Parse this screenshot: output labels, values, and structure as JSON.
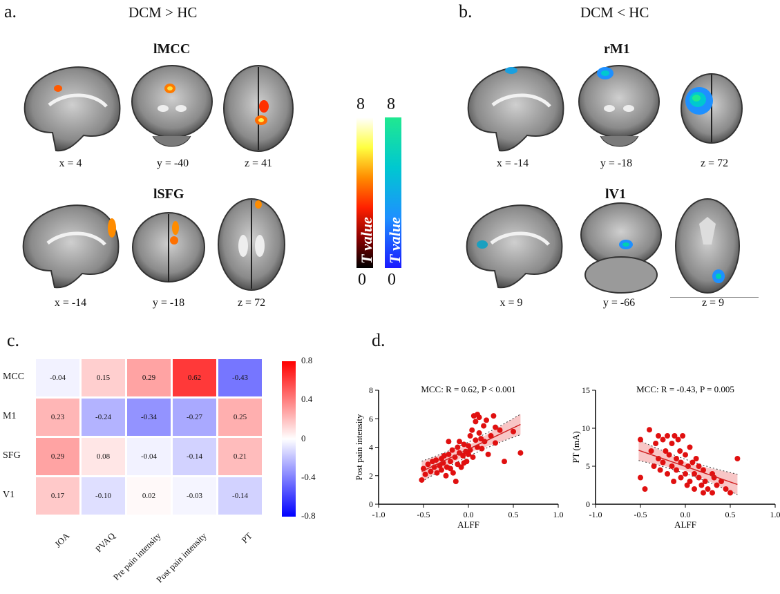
{
  "panel_a": {
    "letter": "a.",
    "contrast": "DCM > HC",
    "regions": [
      {
        "name": "lMCC",
        "coords": [
          "x = 4",
          "y = -40",
          "z = 41"
        ]
      },
      {
        "name": "lSFG",
        "coords": [
          "x = -14",
          "y = -18",
          "z = 72"
        ]
      }
    ]
  },
  "panel_b": {
    "letter": "b.",
    "contrast": "DCM < HC",
    "regions": [
      {
        "name": "rM1",
        "coords": [
          "x = -14",
          "y = -18",
          "z = 72"
        ]
      },
      {
        "name": "lV1",
        "coords": [
          "x = 9",
          "y = -66",
          "z = 9"
        ]
      }
    ]
  },
  "colorbars": {
    "max": "8",
    "min": "0",
    "label": "T value",
    "hot_colors": [
      "#000000",
      "#8b0000",
      "#ff2000",
      "#ff8c00",
      "#ffff40",
      "#ffffff"
    ],
    "cool_colors": [
      "#1a1aff",
      "#1e90ff",
      "#00c8d0",
      "#20e890"
    ]
  },
  "panel_c": {
    "letter": "c."
  },
  "panel_d": {
    "letter": "d."
  },
  "chart_data": [
    {
      "type": "heatmap",
      "rows": [
        "MCC",
        "M1",
        "SFG",
        "V1"
      ],
      "columns": [
        "JOA",
        "PVAQ",
        "Pre pain intensity",
        "Post pain intensity",
        "PT"
      ],
      "values": [
        [
          -0.04,
          0.15,
          0.29,
          0.62,
          -0.43
        ],
        [
          0.23,
          -0.24,
          -0.34,
          -0.27,
          0.25
        ],
        [
          0.29,
          0.08,
          -0.04,
          -0.14,
          0.21
        ],
        [
          0.17,
          -0.1,
          0.02,
          -0.03,
          -0.14
        ]
      ],
      "value_labels": [
        [
          "-0.04",
          "0.15",
          "0.29",
          "0.62",
          "-0.43"
        ],
        [
          "0.23",
          "-0.24",
          "-0.34",
          "-0.27",
          "0.25"
        ],
        [
          "0.29",
          "0.08",
          "-0.04",
          "-0.14",
          "0.21"
        ],
        [
          "0.17",
          "-0.10",
          "0.02",
          "-0.03",
          "-0.14"
        ]
      ],
      "colorbar": {
        "range": [
          -0.8,
          0.8
        ],
        "ticks": [
          "0.8",
          "0.4",
          "0",
          "-0.4",
          "-0.8"
        ],
        "colors": [
          "#0000ff",
          "#ffffff",
          "#ff0000"
        ]
      }
    },
    {
      "type": "scatter",
      "title": "MCC: R = 0.62, P < 0.001",
      "xlabel": "ALFF",
      "ylabel": "Post pain intensity",
      "xlim": [
        -1.0,
        1.0
      ],
      "ylim": [
        0,
        8
      ],
      "xticks": [
        "-1.0",
        "-0.5",
        "0.0",
        "0.5",
        "1.0"
      ],
      "yticks": [
        "0",
        "2",
        "4",
        "6",
        "8"
      ],
      "point_color": "#e01010",
      "fit": {
        "x": [
          -0.52,
          0.58
        ],
        "y": [
          2.3,
          5.6
        ]
      },
      "points": [
        [
          -0.52,
          1.7
        ],
        [
          -0.5,
          2.5
        ],
        [
          -0.48,
          2.1
        ],
        [
          -0.45,
          2.8
        ],
        [
          -0.42,
          2.3
        ],
        [
          -0.4,
          3.0
        ],
        [
          -0.38,
          2.6
        ],
        [
          -0.36,
          3.1
        ],
        [
          -0.35,
          2.2
        ],
        [
          -0.32,
          2.7
        ],
        [
          -0.3,
          3.2
        ],
        [
          -0.3,
          2.4
        ],
        [
          -0.28,
          2.9
        ],
        [
          -0.27,
          3.4
        ],
        [
          -0.25,
          2.0
        ],
        [
          -0.24,
          2.6
        ],
        [
          -0.22,
          3.5
        ],
        [
          -0.22,
          4.4
        ],
        [
          -0.2,
          3.0
        ],
        [
          -0.2,
          2.5
        ],
        [
          -0.18,
          3.8
        ],
        [
          -0.17,
          2.2
        ],
        [
          -0.15,
          3.3
        ],
        [
          -0.14,
          1.6
        ],
        [
          -0.12,
          2.8
        ],
        [
          -0.12,
          4.0
        ],
        [
          -0.1,
          3.6
        ],
        [
          -0.1,
          4.4
        ],
        [
          -0.08,
          2.6
        ],
        [
          -0.06,
          3.4
        ],
        [
          -0.05,
          2.9
        ],
        [
          -0.05,
          4.2
        ],
        [
          -0.03,
          3.7
        ],
        [
          -0.02,
          3.0
        ],
        [
          0.0,
          4.1
        ],
        [
          0.0,
          3.5
        ],
        [
          0.02,
          4.8
        ],
        [
          0.02,
          3.8
        ],
        [
          0.04,
          5.2
        ],
        [
          0.05,
          3.3
        ],
        [
          0.06,
          6.2
        ],
        [
          0.08,
          4.5
        ],
        [
          0.08,
          5.8
        ],
        [
          0.1,
          6.3
        ],
        [
          0.1,
          4.0
        ],
        [
          0.12,
          5.0
        ],
        [
          0.12,
          6.1
        ],
        [
          0.14,
          4.6
        ],
        [
          0.15,
          3.9
        ],
        [
          0.17,
          5.5
        ],
        [
          0.18,
          4.4
        ],
        [
          0.2,
          5.9
        ],
        [
          0.22,
          3.5
        ],
        [
          0.25,
          4.8
        ],
        [
          0.28,
          6.2
        ],
        [
          0.3,
          5.4
        ],
        [
          0.3,
          4.3
        ],
        [
          0.35,
          5.2
        ],
        [
          0.4,
          3.0
        ],
        [
          0.5,
          5.1
        ],
        [
          0.58,
          3.6
        ]
      ]
    },
    {
      "type": "scatter",
      "title": "MCC: R = -0.43, P = 0.005",
      "xlabel": "ALFF",
      "ylabel": "PT (mA)",
      "xlim": [
        -1.0,
        1.0
      ],
      "ylim": [
        0,
        15
      ],
      "xticks": [
        "-1.0",
        "-0.5",
        "0.0",
        "0.5",
        "1.0"
      ],
      "yticks": [
        "0",
        "5",
        "10",
        "15"
      ],
      "point_color": "#e01010",
      "fit": {
        "x": [
          -0.52,
          0.58
        ],
        "y": [
          7.1,
          2.6
        ]
      },
      "points": [
        [
          -0.5,
          8.5
        ],
        [
          -0.5,
          3.5
        ],
        [
          -0.45,
          2.0
        ],
        [
          -0.4,
          9.8
        ],
        [
          -0.38,
          7.0
        ],
        [
          -0.35,
          5.0
        ],
        [
          -0.33,
          8.0
        ],
        [
          -0.3,
          9.0
        ],
        [
          -0.3,
          6.0
        ],
        [
          -0.28,
          4.5
        ],
        [
          -0.25,
          8.5
        ],
        [
          -0.25,
          5.5
        ],
        [
          -0.22,
          7.0
        ],
        [
          -0.2,
          4.0
        ],
        [
          -0.2,
          9.0
        ],
        [
          -0.18,
          6.5
        ],
        [
          -0.15,
          8.0
        ],
        [
          -0.15,
          5.0
        ],
        [
          -0.13,
          3.0
        ],
        [
          -0.12,
          9.0
        ],
        [
          -0.1,
          6.0
        ],
        [
          -0.1,
          4.5
        ],
        [
          -0.08,
          8.5
        ],
        [
          -0.06,
          7.0
        ],
        [
          -0.05,
          5.5
        ],
        [
          -0.05,
          3.5
        ],
        [
          -0.03,
          9.0
        ],
        [
          0.0,
          6.5
        ],
        [
          0.0,
          4.0
        ],
        [
          0.02,
          2.5
        ],
        [
          0.03,
          5.0
        ],
        [
          0.05,
          7.5
        ],
        [
          0.05,
          3.0
        ],
        [
          0.08,
          5.5
        ],
        [
          0.1,
          4.0
        ],
        [
          0.1,
          2.0
        ],
        [
          0.12,
          6.0
        ],
        [
          0.15,
          3.5
        ],
        [
          0.15,
          5.0
        ],
        [
          0.18,
          2.5
        ],
        [
          0.2,
          4.5
        ],
        [
          0.2,
          1.5
        ],
        [
          0.22,
          3.0
        ],
        [
          0.25,
          2.0
        ],
        [
          0.3,
          4.0
        ],
        [
          0.3,
          1.5
        ],
        [
          0.32,
          3.5
        ],
        [
          0.35,
          2.5
        ],
        [
          0.4,
          3.0
        ],
        [
          0.45,
          2.0
        ],
        [
          0.5,
          1.5
        ],
        [
          0.58,
          6.0
        ]
      ]
    }
  ]
}
